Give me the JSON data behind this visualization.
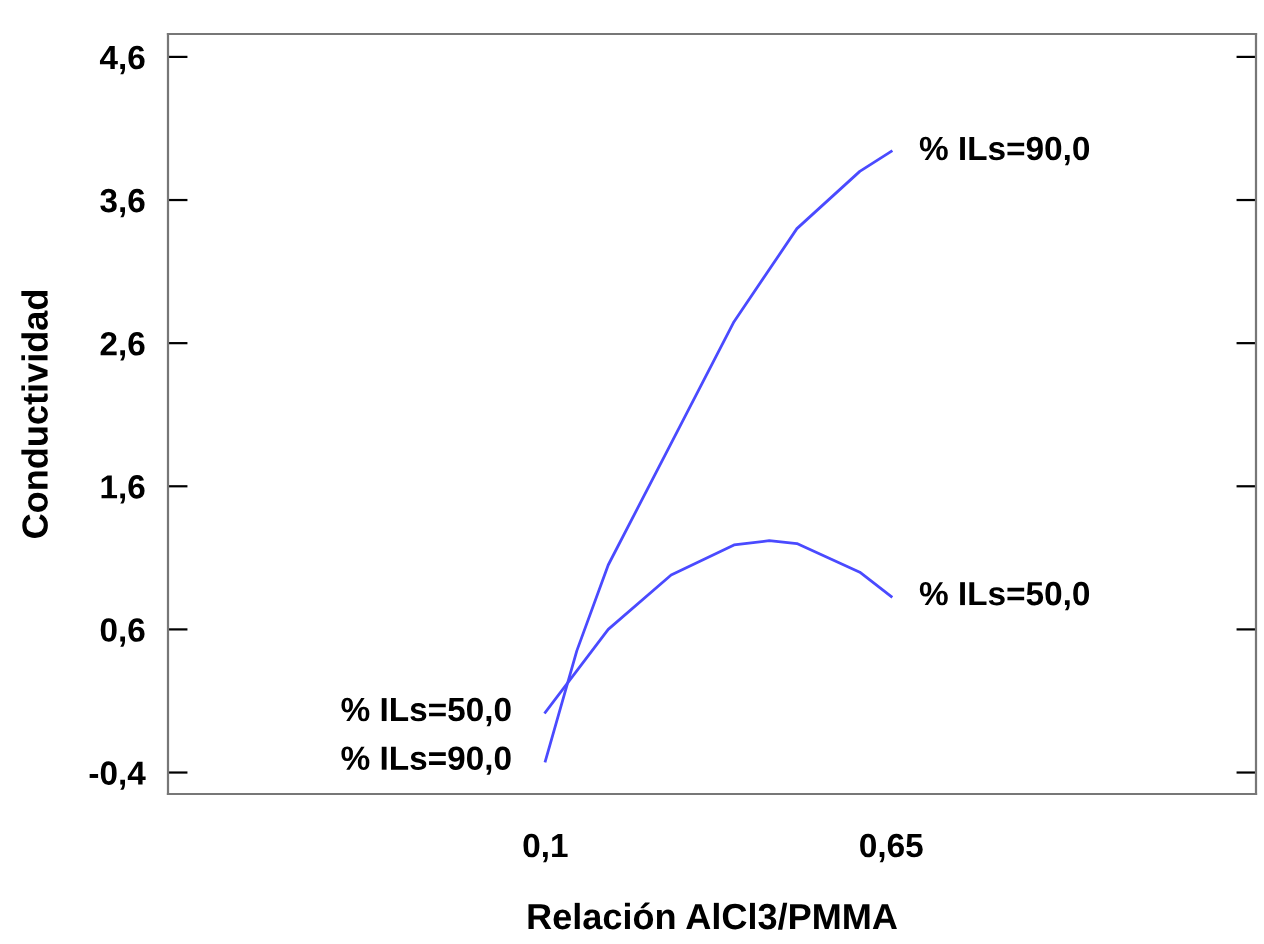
{
  "chart_data": {
    "type": "line",
    "xlabel": "Relación AlCl3/PMMA",
    "ylabel": "Conductividad",
    "series": [
      {
        "name": "% ILs=50,0",
        "color": "#4a4aff",
        "x": [
          0.1,
          0.2,
          0.3,
          0.4,
          0.456,
          0.5,
          0.6,
          0.65
        ],
        "values": [
          0.02,
          0.6,
          0.98,
          1.19,
          1.22,
          1.2,
          1.0,
          0.83
        ]
      },
      {
        "name": "% ILs=90,0",
        "color": "#4a4aff",
        "x": [
          0.1,
          0.15,
          0.2,
          0.3,
          0.4,
          0.5,
          0.6,
          0.65
        ],
        "values": [
          -0.32,
          0.45,
          1.05,
          1.9,
          2.75,
          3.4,
          3.8,
          3.94
        ]
      }
    ],
    "xlim": [
      -0.5,
      1.23
    ],
    "ylim": [
      -0.55,
      4.76
    ],
    "xticks": [
      {
        "value": 0.1,
        "label": "0,1"
      },
      {
        "value": 0.65,
        "label": "0,65"
      }
    ],
    "yticks": [
      {
        "value": -0.4,
        "label": "-0,4"
      },
      {
        "value": 0.6,
        "label": "0,6"
      },
      {
        "value": 1.6,
        "label": "1,6"
      },
      {
        "value": 2.6,
        "label": "2,6"
      },
      {
        "value": 3.6,
        "label": "3,6"
      },
      {
        "value": 4.6,
        "label": "4,6"
      }
    ],
    "grid": false,
    "legend": false,
    "marker": "none",
    "line_style": "solid"
  }
}
